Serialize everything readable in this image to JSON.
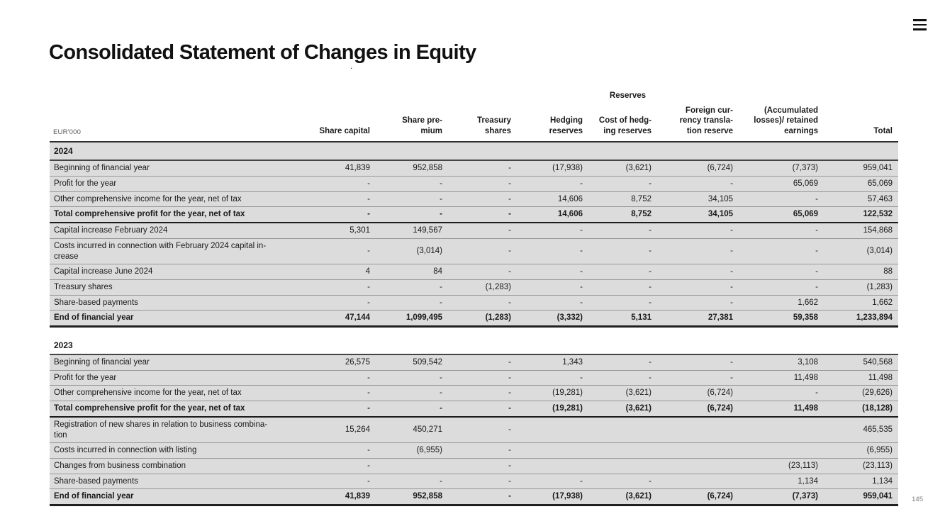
{
  "page": {
    "title": "Consolidated Statement of Changes in Equity",
    "stray_mark": ".",
    "page_number": "145"
  },
  "table": {
    "unit_label": "EUR'000",
    "reserves_group_label": "Reserves",
    "columns": [
      "Share capital",
      "Share pre-\nmium",
      "Treasury\nshares",
      "Hedging\nreserves",
      "Cost of hedg-\ning reserves",
      "Foreign cur-\nrency transla-\ntion reserve",
      "(Accumulated\nlosses)/ retained\nearnings",
      "Total"
    ],
    "sections": [
      {
        "year": "2024",
        "shaded_header": true,
        "rows": [
          {
            "label": "Beginning of financial year",
            "values": [
              "41,839",
              "952,858",
              "-",
              "(17,938)",
              "(3,621)",
              "(6,724)",
              "(7,373)",
              "959,041"
            ]
          },
          {
            "label": "Profit for the year",
            "values": [
              "-",
              "-",
              "-",
              "-",
              "-",
              "-",
              "65,069",
              "65,069"
            ]
          },
          {
            "label": "Other comprehensive income for the year, net of tax",
            "values": [
              "-",
              "-",
              "-",
              "14,606",
              "8,752",
              "34,105",
              "-",
              "57,463"
            ]
          },
          {
            "label": "Total comprehensive profit for the year, net of tax",
            "bold": true,
            "values": [
              "-",
              "-",
              "-",
              "14,606",
              "8,752",
              "34,105",
              "65,069",
              "122,532"
            ]
          },
          {
            "label": "Capital increase February 2024",
            "values": [
              "5,301",
              "149,567",
              "-",
              "-",
              "-",
              "-",
              "-",
              "154,868"
            ]
          },
          {
            "label": "Costs incurred in connection with February 2024 capital in-\ncrease",
            "values": [
              "-",
              "(3,014)",
              "-",
              "-",
              "-",
              "-",
              "-",
              "(3,014)"
            ]
          },
          {
            "label": "Capital increase June 2024",
            "values": [
              "4",
              "84",
              "-",
              "-",
              "-",
              "-",
              "-",
              "88"
            ]
          },
          {
            "label": "Treasury shares",
            "values": [
              "-",
              "-",
              "(1,283)",
              "-",
              "-",
              "-",
              "-",
              "(1,283)"
            ]
          },
          {
            "label": "Share-based payments",
            "values": [
              "-",
              "-",
              "-",
              "-",
              "-",
              "-",
              "1,662",
              "1,662"
            ]
          },
          {
            "label": "End of financial year",
            "bold": true,
            "strong_border": true,
            "values": [
              "47,144",
              "1,099,495",
              "(1,283)",
              "(3,332)",
              "5,131",
              "27,381",
              "59,358",
              "1,233,894"
            ]
          }
        ]
      },
      {
        "year": "2023",
        "shaded_header": false,
        "rows": [
          {
            "label": "Beginning of financial year",
            "values": [
              "26,575",
              "509,542",
              "-",
              "1,343",
              "-",
              "-",
              "3,108",
              "540,568"
            ]
          },
          {
            "label": "Profit for the year",
            "values": [
              "-",
              "-",
              "-",
              "-",
              "-",
              "-",
              "11,498",
              "11,498"
            ]
          },
          {
            "label": "Other comprehensive income for the year, net of tax",
            "values": [
              "-",
              "-",
              "-",
              "(19,281)",
              "(3,621)",
              "(6,724)",
              "-",
              "(29,626)"
            ]
          },
          {
            "label": "Total comprehensive profit for the year, net of tax",
            "bold": true,
            "values": [
              "-",
              "-",
              "-",
              "(19,281)",
              "(3,621)",
              "(6,724)",
              "11,498",
              "(18,128)"
            ]
          },
          {
            "label": "Registration of new shares in relation to business combina-\ntion",
            "values": [
              "15,264",
              "450,271",
              "-",
              "",
              "",
              "",
              "",
              "465,535"
            ]
          },
          {
            "label": "Costs incurred in connection with listing",
            "values": [
              "-",
              "(6,955)",
              "-",
              "",
              "",
              "",
              "",
              "(6,955)"
            ]
          },
          {
            "label": "Changes from business combination",
            "values": [
              "-",
              "",
              "-",
              "",
              "",
              "",
              "(23,113)",
              "(23,113)"
            ]
          },
          {
            "label": "Share-based payments",
            "values": [
              "-",
              "-",
              "-",
              "-",
              "-",
              "",
              "1,134",
              "1,134"
            ]
          },
          {
            "label": "End of financial year",
            "bold": true,
            "strong_border": true,
            "values": [
              "41,839",
              "952,858",
              "-",
              "(17,938)",
              "(3,621)",
              "(6,724)",
              "(7,373)",
              "959,041"
            ]
          }
        ]
      }
    ]
  }
}
